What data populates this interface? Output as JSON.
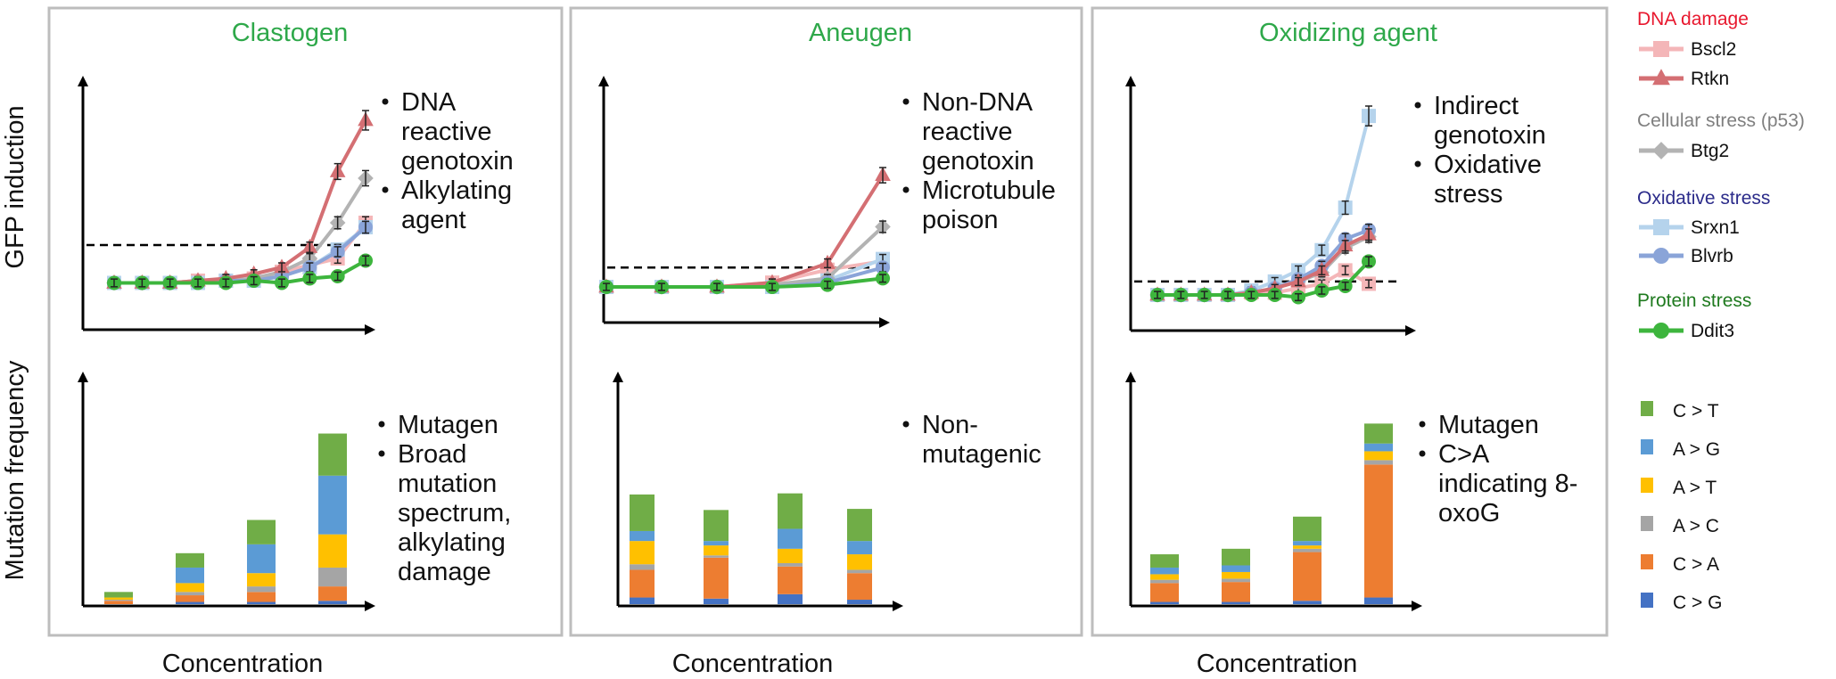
{
  "axis_labels": {
    "y_top": "GFP induction",
    "y_bottom": "Mutation frequency",
    "x": "Concentration"
  },
  "legend": {
    "groups": [
      {
        "title": "DNA damage",
        "title_color": "#e8182e",
        "items": [
          {
            "name": "Bscl2",
            "color": "#f4b6b8",
            "marker": "square"
          },
          {
            "name": "Rtkn",
            "color": "#d46f73",
            "marker": "triangle"
          }
        ]
      },
      {
        "title": "Cellular stress (p53)",
        "title_color": "#7f7f7f",
        "items": [
          {
            "name": "Btg2",
            "color": "#b3b3b3",
            "marker": "diamond"
          }
        ]
      },
      {
        "title": "Oxidative stress",
        "title_color": "#2b2b8a",
        "items": [
          {
            "name": "Srxn1",
            "color": "#b5d3ec",
            "marker": "square"
          },
          {
            "name": "Blvrb",
            "color": "#8aa4d8",
            "marker": "circle"
          }
        ]
      },
      {
        "title": "Protein stress",
        "title_color": "#1f7a1f",
        "items": [
          {
            "name": "Ddit3",
            "color": "#3db53d",
            "marker": "circle"
          }
        ]
      }
    ],
    "mutations": [
      {
        "name": "C > T",
        "color": "#70ad47"
      },
      {
        "name": "A > G",
        "color": "#5b9bd5"
      },
      {
        "name": "A > T",
        "color": "#ffc000"
      },
      {
        "name": "A > C",
        "color": "#a5a5a5"
      },
      {
        "name": "C > A",
        "color": "#ed7d31"
      },
      {
        "name": "C > G",
        "color": "#4472c4"
      }
    ]
  },
  "chart_data": [
    {
      "type": "line",
      "title": "Clastogen",
      "annotations": [
        "DNA",
        "reactive",
        "genotoxin",
        "Alkylating",
        "agent"
      ],
      "x": [
        1,
        2,
        3,
        4,
        5,
        6,
        7,
        8,
        9,
        10
      ],
      "ylim": [
        0,
        10
      ],
      "threshold": 3.2,
      "series": [
        {
          "name": "Bscl2",
          "values": [
            1.5,
            1.5,
            1.5,
            1.6,
            1.6,
            1.7,
            2.0,
            2.3,
            2.6,
            4.2
          ]
        },
        {
          "name": "Rtkn",
          "values": [
            1.5,
            1.5,
            1.5,
            1.6,
            1.7,
            1.9,
            2.2,
            3.1,
            6.5,
            8.8
          ]
        },
        {
          "name": "Btg2",
          "values": [
            1.5,
            1.5,
            1.5,
            1.6,
            1.6,
            1.7,
            2.0,
            2.6,
            4.2,
            6.2
          ]
        },
        {
          "name": "Srxn1",
          "values": [
            1.5,
            1.5,
            1.5,
            1.5,
            1.6,
            1.6,
            1.8,
            2.2,
            3.0,
            4.0
          ]
        },
        {
          "name": "Blvrb",
          "values": [
            1.5,
            1.5,
            1.5,
            1.5,
            1.6,
            1.6,
            1.8,
            2.2,
            2.9,
            4.0
          ]
        },
        {
          "name": "Ddit3",
          "values": [
            1.5,
            1.5,
            1.5,
            1.5,
            1.5,
            1.6,
            1.5,
            1.7,
            1.8,
            2.5
          ]
        }
      ]
    },
    {
      "type": "line",
      "title": "Aneugen",
      "annotations": [
        "Non-DNA",
        "reactive",
        "genotoxin",
        "Microtubule",
        "poison"
      ],
      "x": [
        1,
        2,
        3,
        4,
        5,
        6
      ],
      "ylim": [
        0,
        10
      ],
      "threshold": 1.9,
      "series": [
        {
          "name": "Bscl2",
          "values": [
            1.0,
            1.0,
            1.0,
            1.2,
            1.8,
            2.2
          ]
        },
        {
          "name": "Rtkn",
          "values": [
            1.0,
            1.0,
            1.0,
            1.2,
            2.1,
            6.2
          ]
        },
        {
          "name": "Btg2",
          "values": [
            1.0,
            1.0,
            1.0,
            1.1,
            1.4,
            3.8
          ]
        },
        {
          "name": "Srxn1",
          "values": [
            1.0,
            1.0,
            1.0,
            1.0,
            1.3,
            2.3
          ]
        },
        {
          "name": "Blvrb",
          "values": [
            1.0,
            1.0,
            1.0,
            1.0,
            1.2,
            1.9
          ]
        },
        {
          "name": "Ddit3",
          "values": [
            1.0,
            1.0,
            1.0,
            1.0,
            1.1,
            1.4
          ]
        }
      ]
    },
    {
      "type": "line",
      "title": "Oxidizing agent",
      "annotations": [
        "Indirect",
        "genotoxin",
        "Oxidative",
        "stress"
      ],
      "x": [
        1,
        2,
        3,
        4,
        5,
        6,
        7,
        8,
        9,
        10
      ],
      "ylim": [
        0,
        10
      ],
      "threshold": 1.6,
      "series": [
        {
          "name": "Bscl2",
          "values": [
            1.0,
            1.0,
            1.0,
            1.0,
            1.1,
            1.1,
            1.3,
            1.5,
            2.1,
            1.5
          ]
        },
        {
          "name": "Rtkn",
          "values": [
            1.0,
            1.0,
            1.0,
            1.0,
            1.1,
            1.3,
            1.6,
            2.1,
            3.2,
            3.7
          ]
        },
        {
          "name": "Btg2",
          "values": [
            1.0,
            1.0,
            1.0,
            1.0,
            1.1,
            1.3,
            1.6,
            2.0,
            3.1,
            3.6
          ]
        },
        {
          "name": "Srxn1",
          "values": [
            1.0,
            1.0,
            1.0,
            1.0,
            1.2,
            1.6,
            2.1,
            3.0,
            4.9,
            9.0
          ]
        },
        {
          "name": "Blvrb",
          "values": [
            1.0,
            1.0,
            1.0,
            1.0,
            1.1,
            1.3,
            1.7,
            2.3,
            3.5,
            3.9
          ]
        },
        {
          "name": "Ddit3",
          "values": [
            1.0,
            1.0,
            1.0,
            1.0,
            1.0,
            1.0,
            0.9,
            1.2,
            1.4,
            2.5
          ]
        }
      ]
    },
    {
      "type": "bar",
      "stacked": true,
      "title": "",
      "annotations": [
        "Mutagen",
        "Broad",
        "mutation",
        "spectrum,",
        "alkylating",
        "damage"
      ],
      "categories": [
        "1",
        "2",
        "3",
        "4"
      ],
      "ylim": [
        0,
        185
      ],
      "series": [
        {
          "name": "C > G",
          "values": [
            0,
            2,
            2,
            3
          ]
        },
        {
          "name": "C > A",
          "values": [
            3,
            6,
            9,
            13
          ]
        },
        {
          "name": "A > C",
          "values": [
            1,
            3,
            5,
            17
          ]
        },
        {
          "name": "A > T",
          "values": [
            2,
            8,
            12,
            30
          ]
        },
        {
          "name": "A > G",
          "values": [
            0,
            14,
            26,
            53
          ]
        },
        {
          "name": "C > T",
          "values": [
            5,
            13,
            22,
            38
          ]
        }
      ]
    },
    {
      "type": "bar",
      "stacked": true,
      "title": "",
      "annotations": [
        "Non-",
        "mutagenic"
      ],
      "categories": [
        "1",
        "2",
        "3",
        "4"
      ],
      "ylim": [
        0,
        185
      ],
      "series": [
        {
          "name": "C > G",
          "values": [
            6,
            5,
            9,
            4
          ]
        },
        {
          "name": "C > A",
          "values": [
            25,
            37,
            25,
            24
          ]
        },
        {
          "name": "A > C",
          "values": [
            5,
            2,
            3,
            3
          ]
        },
        {
          "name": "A > T",
          "values": [
            21,
            9,
            13,
            14
          ]
        },
        {
          "name": "A > G",
          "values": [
            9,
            4,
            18,
            12
          ]
        },
        {
          "name": "C > T",
          "values": [
            33,
            28,
            32,
            29
          ]
        }
      ]
    },
    {
      "type": "bar",
      "stacked": true,
      "title": "",
      "annotations": [
        "Mutagen",
        "C>A",
        "indicating 8-",
        "oxoG"
      ],
      "categories": [
        "1",
        "2",
        "3",
        "4"
      ],
      "ylim": [
        0,
        185
      ],
      "series": [
        {
          "name": "C > G",
          "values": [
            2,
            2,
            3,
            6
          ]
        },
        {
          "name": "C > A",
          "values": [
            17,
            18,
            44,
            120
          ]
        },
        {
          "name": "A > C",
          "values": [
            3,
            3,
            3,
            4
          ]
        },
        {
          "name": "A > T",
          "values": [
            5,
            6,
            3,
            8
          ]
        },
        {
          "name": "A > G",
          "values": [
            6,
            6,
            4,
            7
          ]
        },
        {
          "name": "C > T",
          "values": [
            12,
            15,
            22,
            18
          ]
        }
      ]
    }
  ]
}
